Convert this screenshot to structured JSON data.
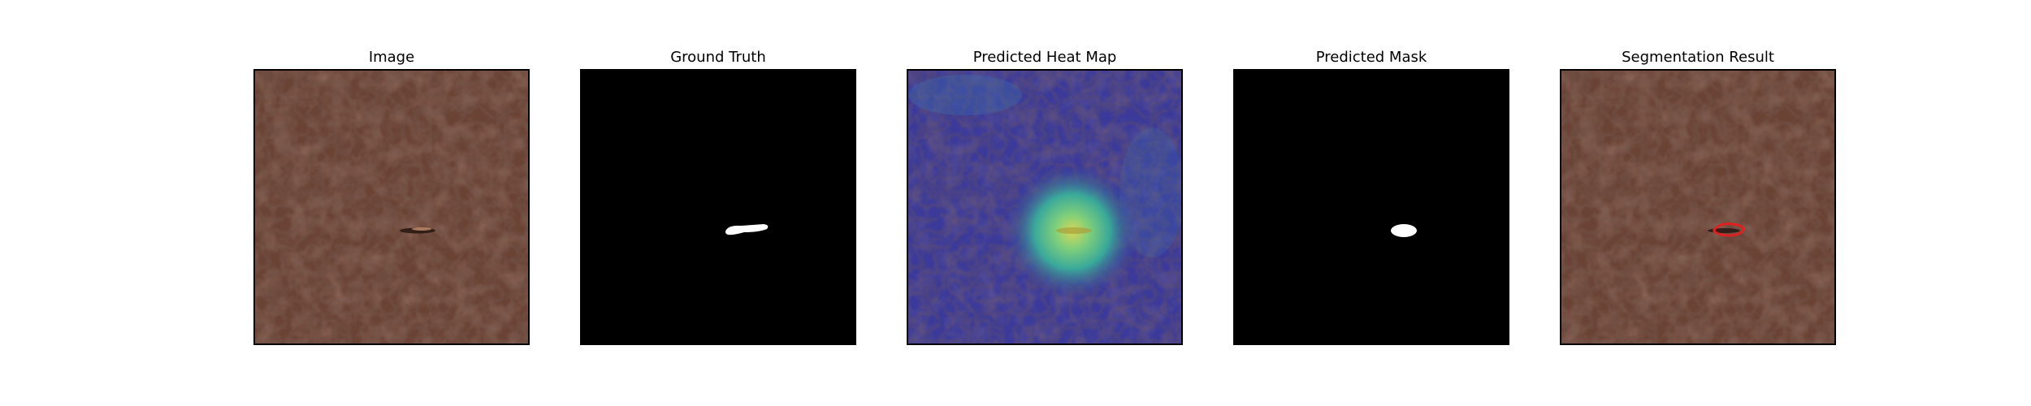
{
  "panels": [
    {
      "title": "Image"
    },
    {
      "title": "Ground Truth"
    },
    {
      "title": "Predicted Heat Map"
    },
    {
      "title": "Predicted Mask"
    },
    {
      "title": "Segmentation Result"
    }
  ],
  "colors": {
    "leather": "#6a4335",
    "leather_dark": "#4d2f25",
    "mask_bg": "#000000",
    "mask_fg": "#ffffff",
    "heatmap_low": "#3b3a9a",
    "heatmap_mid": "#3fb59a",
    "heatmap_high": "#d8d85a",
    "contour": "#e02020"
  }
}
